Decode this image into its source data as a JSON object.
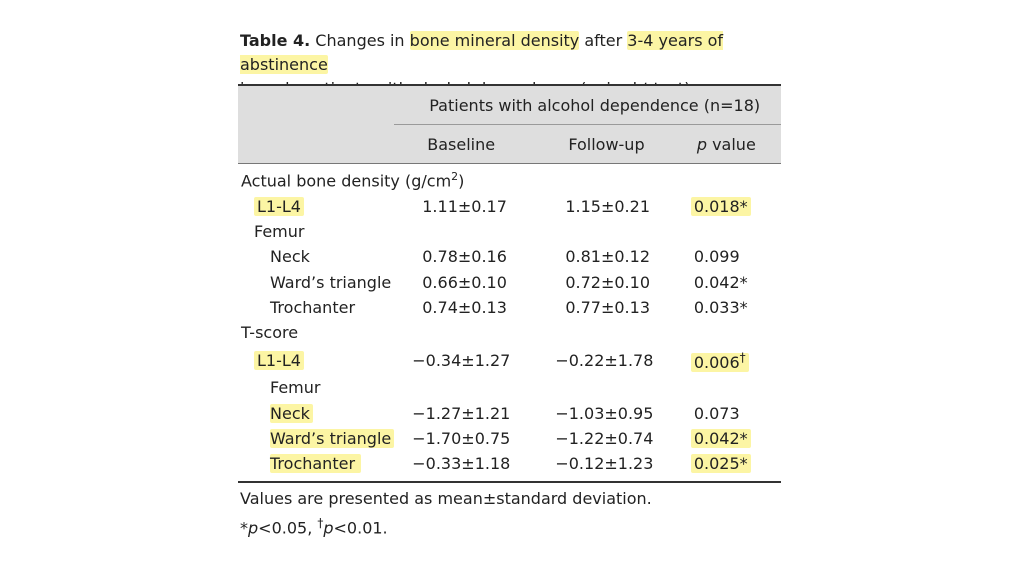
{
  "caption": {
    "label": "Table 4.",
    "text_before_hl1": " Changes in ",
    "hl1": "bone mineral density",
    "text_between": " after ",
    "hl2": "3-4 years of abstinence",
    "line2_before": "in male patients with alcohol dependence (paired ",
    "line2_italic": "t",
    "line2_after": " test)"
  },
  "header": {
    "group": "Patients with alcohol dependence (n=18)",
    "baseline": "Baseline",
    "followup": "Follow-up",
    "p_italic": "p",
    "p_rest": " value"
  },
  "sections": {
    "actual": {
      "label": "Actual bone density (g/cm",
      "sup": "2",
      "close": ")"
    },
    "femur1": "Femur",
    "tscore": "T-score",
    "femur2": "Femur"
  },
  "rows": {
    "a_l1l4": {
      "label": "L1-L4",
      "baseline": "1.11±0.17",
      "followup": "1.15±0.21",
      "p": "0.018*"
    },
    "a_neck": {
      "label": "Neck",
      "baseline": "0.78±0.16",
      "followup": "0.81±0.12",
      "p": "0.099"
    },
    "a_ward": {
      "label": "Ward’s triangle",
      "baseline": "0.66±0.10",
      "followup": "0.72±0.10",
      "p": "0.042*"
    },
    "a_troch": {
      "label": "Trochanter",
      "baseline": "0.74±0.13",
      "followup": "0.77±0.13",
      "p": "0.033*"
    },
    "t_l1l4": {
      "label": "L1-L4",
      "baseline": "−0.34±1.27",
      "followup": "−0.22±1.78",
      "p": "0.006",
      "p_sup": "†"
    },
    "t_neck": {
      "label": "Neck",
      "baseline": "−1.27±1.21",
      "followup": "−1.03±0.95",
      "p": "0.073"
    },
    "t_ward": {
      "label": "Ward’s triangle",
      "baseline": "−1.70±0.75",
      "followup": "−1.22±0.74",
      "p": "0.042*"
    },
    "t_troch": {
      "label": "Trochanter",
      "baseline": "−0.33±1.18",
      "followup": "−0.12±1.23",
      "p": "0.025*"
    }
  },
  "footnote": {
    "line1": "Values are presented as mean±standard deviation.",
    "star": "*",
    "p1": "p",
    "lt1": "<0.05, ",
    "dagger": "†",
    "p2": "p",
    "lt2": "<0.01."
  },
  "colors": {
    "highlight": "#fcf5a4",
    "header_bg": "#dedede",
    "text": "#222222"
  }
}
